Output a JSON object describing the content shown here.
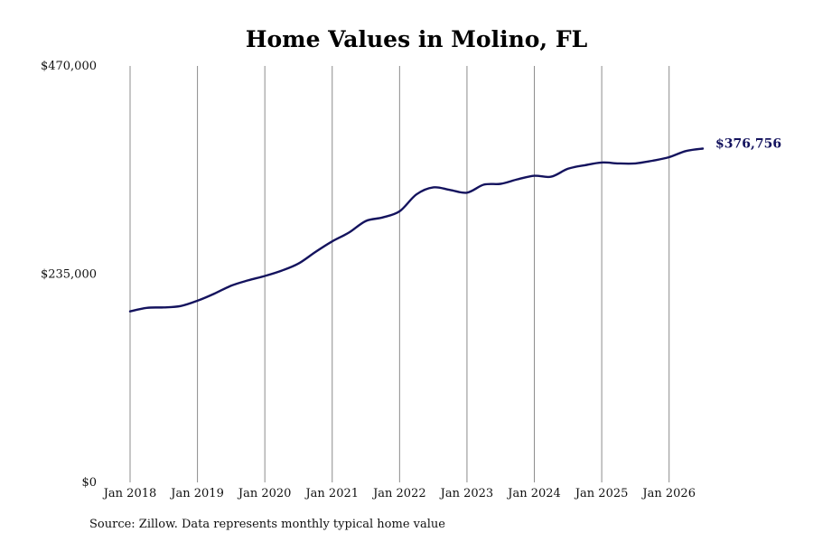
{
  "source_note": "Source: Zillow. Data represents monthly typical home value",
  "colors": {
    "line": "#14135e",
    "grid": "#8c8c8c",
    "end_label": "#14135e"
  },
  "chart_data": {
    "type": "line",
    "title": "Home Values in Molino, FL",
    "xlabel": "",
    "ylabel": "",
    "ylim": [
      0,
      470000
    ],
    "yticks": [
      0,
      235000,
      470000
    ],
    "ytick_labels": [
      "$0",
      "$235,000",
      "$470,000"
    ],
    "xlim": [
      "2018-01",
      "2026-07"
    ],
    "xticks": [
      "2018-01",
      "2019-01",
      "2020-01",
      "2021-01",
      "2022-01",
      "2023-01",
      "2024-01",
      "2025-01",
      "2026-01"
    ],
    "xtick_labels": [
      "Jan 2018",
      "Jan 2019",
      "Jan 2020",
      "Jan 2021",
      "Jan 2022",
      "Jan 2023",
      "Jan 2024",
      "Jan 2025",
      "Jan 2026"
    ],
    "grid": {
      "vertical": true,
      "horizontal": false
    },
    "end_label": "$376,756",
    "series": [
      {
        "x": [
          "2018-01",
          "2018-04",
          "2018-07",
          "2018-10",
          "2019-01",
          "2019-04",
          "2019-07",
          "2019-10",
          "2020-01",
          "2020-04",
          "2020-07",
          "2020-10",
          "2021-01",
          "2021-04",
          "2021-07",
          "2021-10",
          "2022-01",
          "2022-04",
          "2022-07",
          "2022-10",
          "2023-01",
          "2023-04",
          "2023-07",
          "2023-10",
          "2024-01",
          "2024-04",
          "2024-07",
          "2024-10",
          "2025-01",
          "2025-04",
          "2025-07",
          "2025-10",
          "2026-01",
          "2026-04",
          "2026-07"
        ],
        "values": [
          193000,
          197000,
          197500,
          199000,
          205000,
          213000,
          222000,
          228000,
          233000,
          239000,
          247000,
          260000,
          272000,
          282000,
          295000,
          299000,
          306000,
          325000,
          333000,
          330000,
          327000,
          336000,
          337000,
          342000,
          346000,
          345000,
          354000,
          358000,
          361000,
          360000,
          360000,
          363000,
          367000,
          374000,
          376756
        ]
      }
    ]
  }
}
